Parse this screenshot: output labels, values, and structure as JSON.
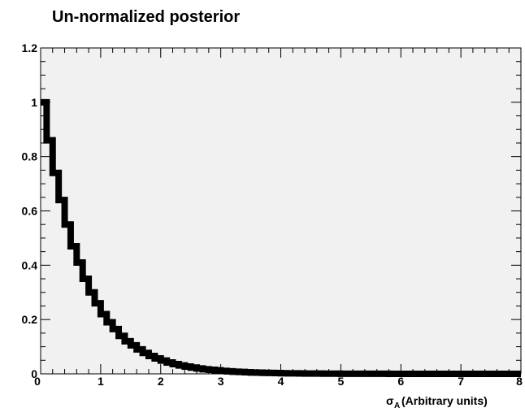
{
  "chart_data": {
    "type": "bar",
    "title": "Un-normalized posterior",
    "xlabel": {
      "symbol": "σ",
      "subscript": "A",
      "text": " (Arbitrary units)"
    },
    "ylabel": "",
    "xlim": [
      0,
      8
    ],
    "ylim": [
      0,
      1.2
    ],
    "x_ticks": [
      "0",
      "1",
      "2",
      "3",
      "4",
      "5",
      "6",
      "7",
      "8"
    ],
    "y_ticks": [
      "0",
      "0.2",
      "0.4",
      "0.6",
      "0.8",
      "1",
      "1.2"
    ],
    "bin_width": 0.1,
    "bin_edges_start": 0,
    "values": [
      1.0,
      0.86,
      0.74,
      0.64,
      0.55,
      0.47,
      0.41,
      0.35,
      0.3,
      0.26,
      0.22,
      0.19,
      0.165,
      0.14,
      0.12,
      0.105,
      0.09,
      0.077,
      0.066,
      0.057,
      0.049,
      0.042,
      0.036,
      0.031,
      0.027,
      0.023,
      0.02,
      0.017,
      0.015,
      0.013,
      0.011,
      0.0095,
      0.008,
      0.007,
      0.006,
      0.005,
      0.0044,
      0.0038,
      0.0032,
      0.0028,
      0.0024,
      0.002,
      0.0018,
      0.0015,
      0.0013,
      0.0011,
      0.001,
      0.0008,
      0.0007,
      0.0006,
      0.0005,
      0.0004,
      0.0004,
      0.0003,
      0.0003,
      0.0002,
      0.0002,
      0.0002,
      0.0001,
      0.0001,
      0.0001,
      0.0001,
      0.0001,
      0.0,
      0.0,
      0.0,
      0.0,
      0.0,
      0.0,
      0.0,
      0.0,
      0.0,
      0.0,
      0.0,
      0.0,
      0.0,
      0.0,
      0.0,
      0.0,
      0.0
    ],
    "grid": false,
    "colors": {
      "frame_bg": "#f1f1f1",
      "line": "#000000",
      "page_bg": "#ffffff"
    }
  }
}
